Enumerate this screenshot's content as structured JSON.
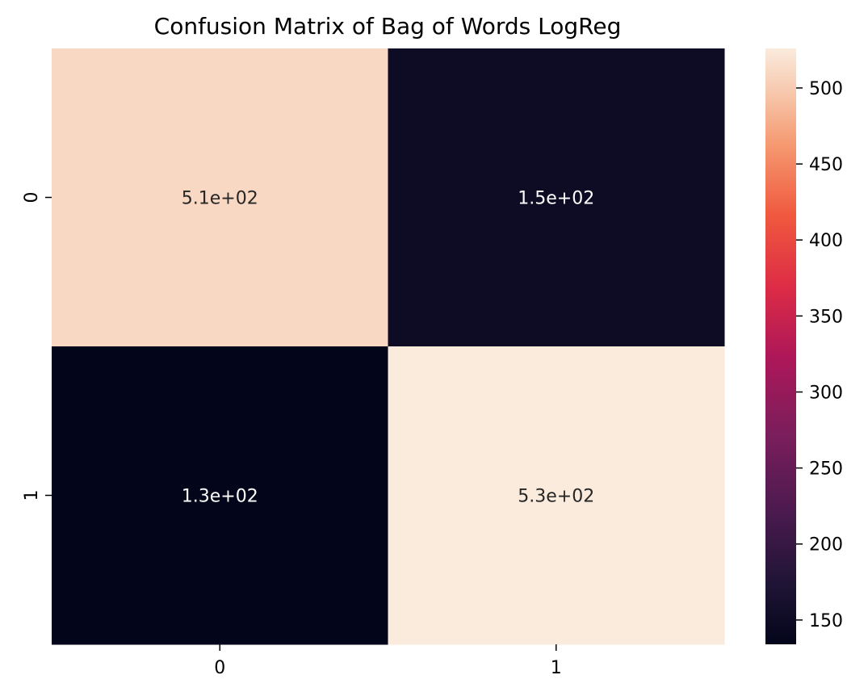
{
  "chart_data": {
    "type": "heatmap",
    "title": "Confusion Matrix of Bag of Words LogReg",
    "x_categories": [
      "0",
      "1"
    ],
    "y_categories": [
      "0",
      "1"
    ],
    "matrix": [
      [
        510,
        150
      ],
      [
        130,
        530
      ]
    ],
    "annotations": [
      [
        "5.1e+02",
        "1.5e+02"
      ],
      [
        "1.3e+02",
        "5.3e+02"
      ]
    ],
    "colormap": "rocket",
    "colorbar": {
      "range": [
        134,
        526
      ],
      "ticks": [
        150,
        200,
        250,
        300,
        350,
        400,
        450,
        500
      ],
      "tick_labels": [
        "150",
        "200",
        "250",
        "300",
        "350",
        "400",
        "450",
        "500"
      ]
    },
    "xlabel": "",
    "ylabel": ""
  }
}
